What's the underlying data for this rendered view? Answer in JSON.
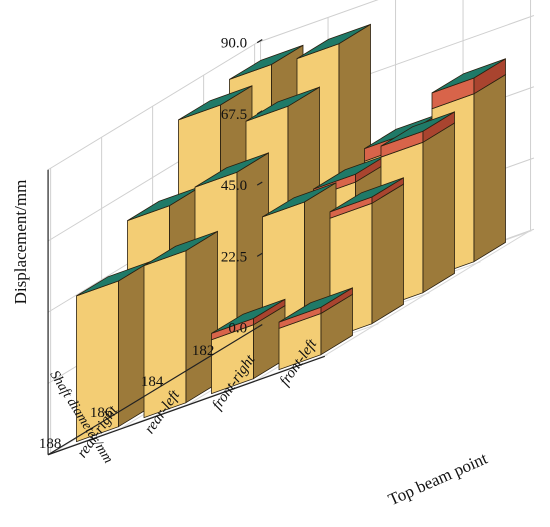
{
  "chart_data": {
    "type": "bar3d",
    "zlabel": "Displacement/mm",
    "ylabel": "Shaft diameter/mm",
    "xlabel": "Top beam point",
    "z_ticks": [
      "0.0",
      "22.5",
      "45.0",
      "67.5",
      "90.0"
    ],
    "zlim": [
      0,
      90
    ],
    "y_categories": [
      "182",
      "184",
      "186",
      "188"
    ],
    "x_categories": [
      "rear-right",
      "rear-left",
      "front-right",
      "front-left"
    ],
    "grid": true,
    "colors": {
      "side": "#9c7a3a",
      "front": "#f3cd74",
      "top": "#1f7a68",
      "top_band": "#d8644a",
      "edge": "#2a2010"
    },
    "series": [
      {
        "name": "182",
        "values": [
          85.0,
          84.0,
          48.0,
          58.0
        ],
        "top_band": [
          0,
          0,
          4.0,
          5.0
        ]
      },
      {
        "name": "184",
        "values": [
          82.0,
          74.0,
          45.0,
          51.0
        ],
        "top_band": [
          0,
          0,
          2.5,
          3.5
        ]
      },
      {
        "name": "186",
        "values": [
          60.0,
          63.0,
          46.0,
          40.0
        ],
        "top_band": [
          0,
          0,
          0,
          2.0
        ]
      },
      {
        "name": "188",
        "values": [
          46.0,
          48.0,
          19.0,
          15.0
        ],
        "top_band": [
          0,
          0,
          2.0,
          2.0
        ]
      }
    ]
  }
}
